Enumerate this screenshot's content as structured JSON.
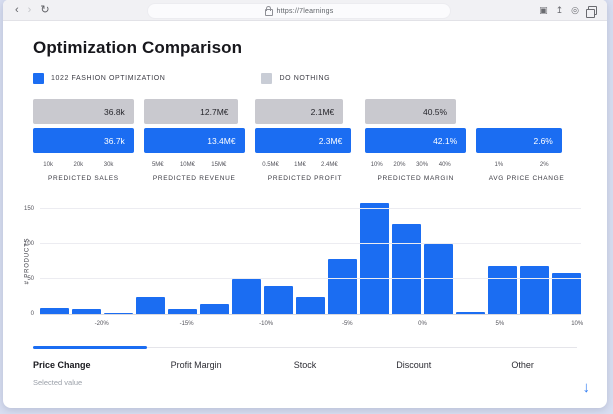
{
  "browser": {
    "url": "https://7learnings",
    "left_icons": [
      "back-icon",
      "forward-icon",
      "reload-icon"
    ],
    "right_icons": [
      "extensions-icon",
      "share-icon",
      "new-tab-icon",
      "tabs-icon"
    ],
    "lock_icon": "lock-icon"
  },
  "page": {
    "title": "Optimization Comparison",
    "legend": [
      {
        "label": "1022 FASHION OPTIMIZATION",
        "color": "#1b6df2"
      },
      {
        "label": "DO NOTHING",
        "color": "#c9cdd6"
      }
    ],
    "kpis": [
      {
        "label": "PREDICTED SALES",
        "baseline": "36.8k",
        "optimized": "36.7k",
        "ticks": [
          "10k",
          "20k",
          "30k"
        ],
        "baseline_width": 100,
        "optimized_width": 100
      },
      {
        "label": "PREDICTED REVENUE",
        "baseline": "12.7M€",
        "optimized": "13.4M€",
        "ticks": [
          "5M€",
          "10M€",
          "15M€"
        ],
        "baseline_width": 93,
        "optimized_width": 100
      },
      {
        "label": "PREDICTED PROFIT",
        "baseline": "2.1M€",
        "optimized": "2.3M€",
        "ticks": [
          "0.5M€",
          "1M€",
          "2.4M€"
        ],
        "baseline_width": 88,
        "optimized_width": 96
      },
      {
        "label": "PREDICTED MARGIN",
        "baseline": "40.5%",
        "optimized": "42.1%",
        "ticks": [
          "10%",
          "20%",
          "30%",
          "40%"
        ],
        "baseline_width": 90,
        "optimized_width": 100
      },
      {
        "label": "AVG PRICE CHANGE",
        "baseline": null,
        "optimized": "2.6%",
        "ticks": [
          "1%",
          "2%"
        ],
        "baseline_width": 0,
        "optimized_width": 85
      }
    ]
  },
  "chart_data": {
    "type": "bar",
    "title": "",
    "xlabel": "",
    "ylabel": "# PRODUCTS",
    "values": [
      8,
      7,
      1,
      24,
      7,
      14,
      50,
      40,
      24,
      78,
      158,
      128,
      100,
      3,
      68,
      68,
      58
    ],
    "y_ticks": [
      0,
      50,
      100,
      150
    ],
    "ylim": [
      0,
      160
    ],
    "x_tick_labels": [
      "-20%",
      "-15%",
      "-10%",
      "-5%",
      "0%",
      "5%",
      "10%"
    ],
    "x_tick_positions_pct": [
      11.4,
      27.1,
      41.8,
      56.8,
      70.7,
      85.0,
      99.3
    ],
    "bar_color": "#1b6df2",
    "grid": true
  },
  "tabs": {
    "items": [
      "Price Change",
      "Profit Margin",
      "Stock",
      "Discount",
      "Other"
    ],
    "active": "Price Change"
  },
  "footer": {
    "selected_value_label": "Selected value",
    "download_icon": "down-arrow-icon"
  }
}
